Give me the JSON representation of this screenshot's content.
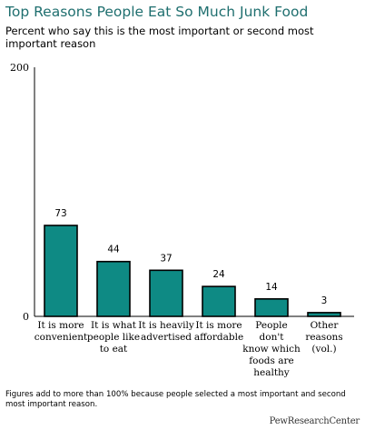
{
  "chart_data": {
    "type": "bar",
    "title": "Top Reasons People Eat So Much Junk Food",
    "subtitle": "Percent who say this is the most important or second most important reason",
    "categories": [
      [
        "It is more",
        "convenient"
      ],
      [
        "It is  what",
        "people like",
        "to eat"
      ],
      [
        "It is heavily",
        "advertised"
      ],
      [
        "It is more",
        "affordable"
      ],
      [
        "People don't",
        "know which",
        "foods are",
        "healthy"
      ],
      [
        "Other",
        "reasons",
        "(vol.)"
      ]
    ],
    "values": [
      73,
      44,
      37,
      24,
      14,
      3
    ],
    "value_labels": [
      "73",
      "44",
      "37",
      "24",
      "14",
      "3"
    ],
    "ylim": [
      0,
      200
    ],
    "ytick_labels": [
      "0",
      "200"
    ],
    "bar_color": "#0e8a84",
    "grid": false
  },
  "footnote": "Figures add to more than 100% because people selected a most important and second most important reason.",
  "source": "PewResearchCenter"
}
